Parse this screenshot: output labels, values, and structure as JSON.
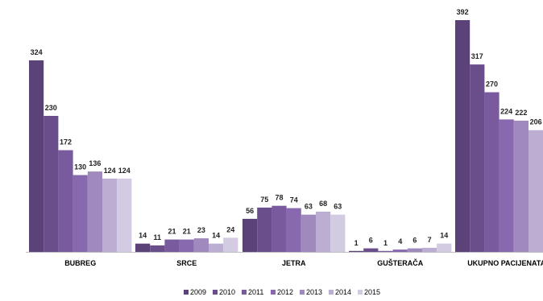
{
  "chart_data": {
    "type": "bar",
    "title": "",
    "xlabel": "",
    "ylabel": "",
    "ylim": [
      0,
      420
    ],
    "grid": false,
    "legend_position": "bottom",
    "categories": [
      "BUBREG",
      "SRCE",
      "JETRA",
      "GUŠTERAČA",
      "UKUPNO PACIJENATA"
    ],
    "series": [
      {
        "name": "2009",
        "color": "#5b4279",
        "values": [
          324,
          14,
          56,
          1,
          392
        ]
      },
      {
        "name": "2010",
        "color": "#6a4e8b",
        "values": [
          230,
          11,
          75,
          6,
          317
        ]
      },
      {
        "name": "2011",
        "color": "#7a5a9e",
        "values": [
          172,
          21,
          78,
          1,
          270
        ]
      },
      {
        "name": "2012",
        "color": "#8868ae",
        "values": [
          130,
          21,
          74,
          4,
          224
        ]
      },
      {
        "name": "2013",
        "color": "#a089bd",
        "values": [
          136,
          23,
          63,
          6,
          222
        ]
      },
      {
        "name": "2014",
        "color": "#bcaed2",
        "values": [
          124,
          14,
          68,
          7,
          206
        ]
      },
      {
        "name": "2015",
        "color": "#d3cbe2",
        "values": [
          124,
          24,
          63,
          14,
          null
        ]
      }
    ]
  }
}
